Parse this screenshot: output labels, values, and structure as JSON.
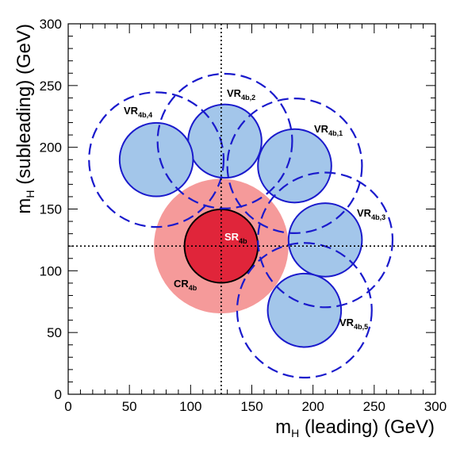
{
  "chart_data": {
    "type": "scatter",
    "xlim": [
      0,
      300
    ],
    "ylim": [
      0,
      300
    ],
    "x_ticks": [
      "0",
      "50",
      "100",
      "150",
      "200",
      "250",
      "300"
    ],
    "y_ticks": [
      "0",
      "50",
      "100",
      "150",
      "200",
      "250",
      "300"
    ],
    "xlabel": {
      "main": "m",
      "sub": "H",
      "rest": " (leading) (GeV)"
    },
    "ylabel": {
      "main": "m",
      "sub": "H",
      "rest": " (subleading) (GeV)"
    },
    "reference_lines": {
      "x": 125,
      "y": 120
    },
    "colors": {
      "cr_fill": "#f59a9a",
      "sr_fill": "#e0253a",
      "vr_fill": "#a3c6ea",
      "vr_stroke": "#1a1acc",
      "outline": "#000000"
    },
    "regions": [
      {
        "id": "CR",
        "label": "CR",
        "sub": "4b",
        "center": [
          125,
          120
        ],
        "radius_gev": 55,
        "style": "cr"
      },
      {
        "id": "SR",
        "label": "SR",
        "sub": "4b",
        "center": [
          125,
          120
        ],
        "radius_gev": 30,
        "style": "sr"
      },
      {
        "id": "VR1",
        "label": "VR",
        "sub": "4b,1",
        "center": [
          185,
          185
        ],
        "radius_gev": 30,
        "outer_radius_gev": 55,
        "style": "vr"
      },
      {
        "id": "VR2",
        "label": "VR",
        "sub": "4b,2",
        "center": [
          128,
          205
        ],
        "radius_gev": 30,
        "outer_radius_gev": 55,
        "style": "vr"
      },
      {
        "id": "VR3",
        "label": "VR",
        "sub": "4b,3",
        "center": [
          210,
          125
        ],
        "radius_gev": 30,
        "outer_radius_gev": 55,
        "style": "vr"
      },
      {
        "id": "VR4",
        "label": "VR",
        "sub": "4b,4",
        "center": [
          72,
          190
        ],
        "radius_gev": 30,
        "outer_radius_gev": 55,
        "style": "vr"
      },
      {
        "id": "VR5",
        "label": "VR",
        "sub": "4b,5",
        "center": [
          193,
          68
        ],
        "radius_gev": 30,
        "outer_radius_gev": 55,
        "style": "vr"
      }
    ]
  }
}
